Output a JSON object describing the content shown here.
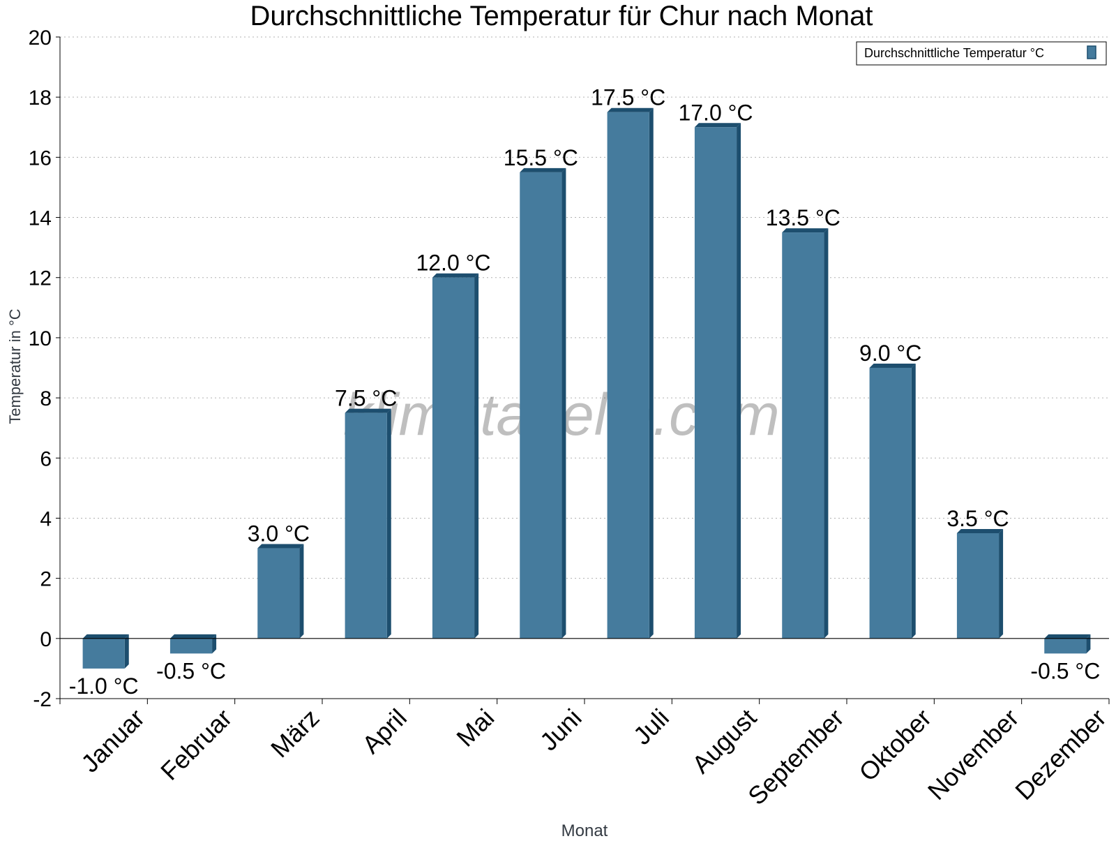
{
  "chart_data": {
    "type": "bar",
    "title": "Durchschnittliche Temperatur für Chur nach Monat",
    "xlabel": "Monat",
    "ylabel": "Temperatur in °C",
    "watermark": "klimatabelle.com",
    "categories": [
      "Januar",
      "Februar",
      "März",
      "April",
      "Mai",
      "Juni",
      "Juli",
      "August",
      "September",
      "Oktober",
      "November",
      "Dezember"
    ],
    "series": [
      {
        "name": "Durchschnittliche Temperatur °C",
        "values": [
          -1.0,
          -0.5,
          3.0,
          7.5,
          12.0,
          15.5,
          17.5,
          17.0,
          13.5,
          9.0,
          3.5,
          -0.5
        ],
        "labels": [
          "-1.0 °C",
          "-0.5 °C",
          "3.0 °C",
          "7.5 °C",
          "12.0 °C",
          "15.5 °C",
          "17.5 °C",
          "17.0 °C",
          "13.5 °C",
          "9.0 °C",
          "3.5 °C",
          "-0.5 °C"
        ],
        "color": "#457b9d",
        "shade_color": "#1d4e6e"
      }
    ],
    "ylim": [
      -2,
      20
    ],
    "yticks": [
      -2,
      0,
      2,
      4,
      6,
      8,
      10,
      12,
      14,
      16,
      18,
      20
    ],
    "grid": true,
    "legend_position": "top-right"
  }
}
